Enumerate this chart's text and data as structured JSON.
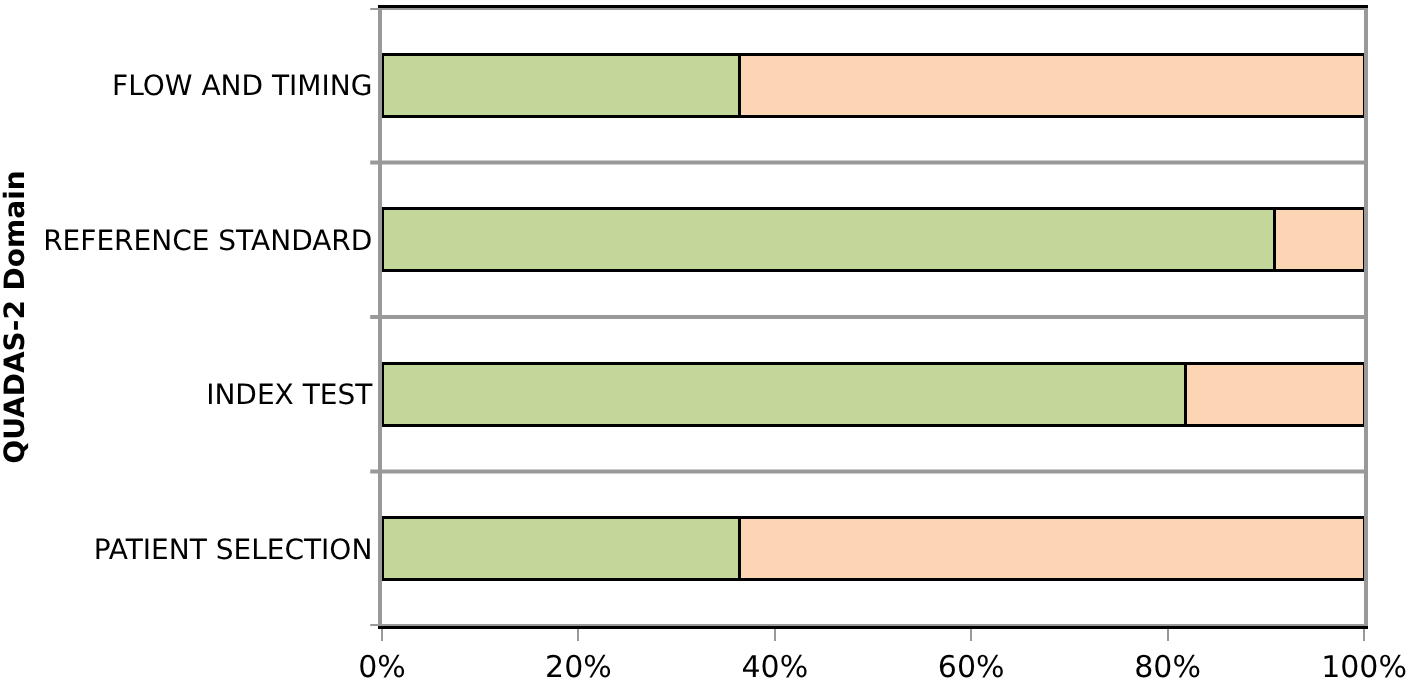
{
  "chart_data": {
    "type": "bar",
    "orientation": "horizontal",
    "stacked": true,
    "ylabel": "QUADAS-2 Domain",
    "categories": [
      "FLOW AND TIMING",
      "REFERENCE STANDARD",
      "INDEX TEST",
      "PATIENT SELECTION"
    ],
    "series": [
      {
        "color": "#c4d79b",
        "values": [
          36.4,
          90.9,
          81.8,
          36.4
        ]
      },
      {
        "color": "#fcd5b4",
        "values": [
          63.6,
          9.1,
          18.2,
          63.6
        ]
      }
    ],
    "xlim": [
      0,
      100
    ],
    "xticks": [
      {
        "value": 0,
        "label": "0%"
      },
      {
        "value": 20,
        "label": "20%"
      },
      {
        "value": 40,
        "label": "40%"
      },
      {
        "value": 60,
        "label": "60%"
      },
      {
        "value": 80,
        "label": "80%"
      },
      {
        "value": 100,
        "label": "100%"
      }
    ],
    "grid": "y"
  }
}
